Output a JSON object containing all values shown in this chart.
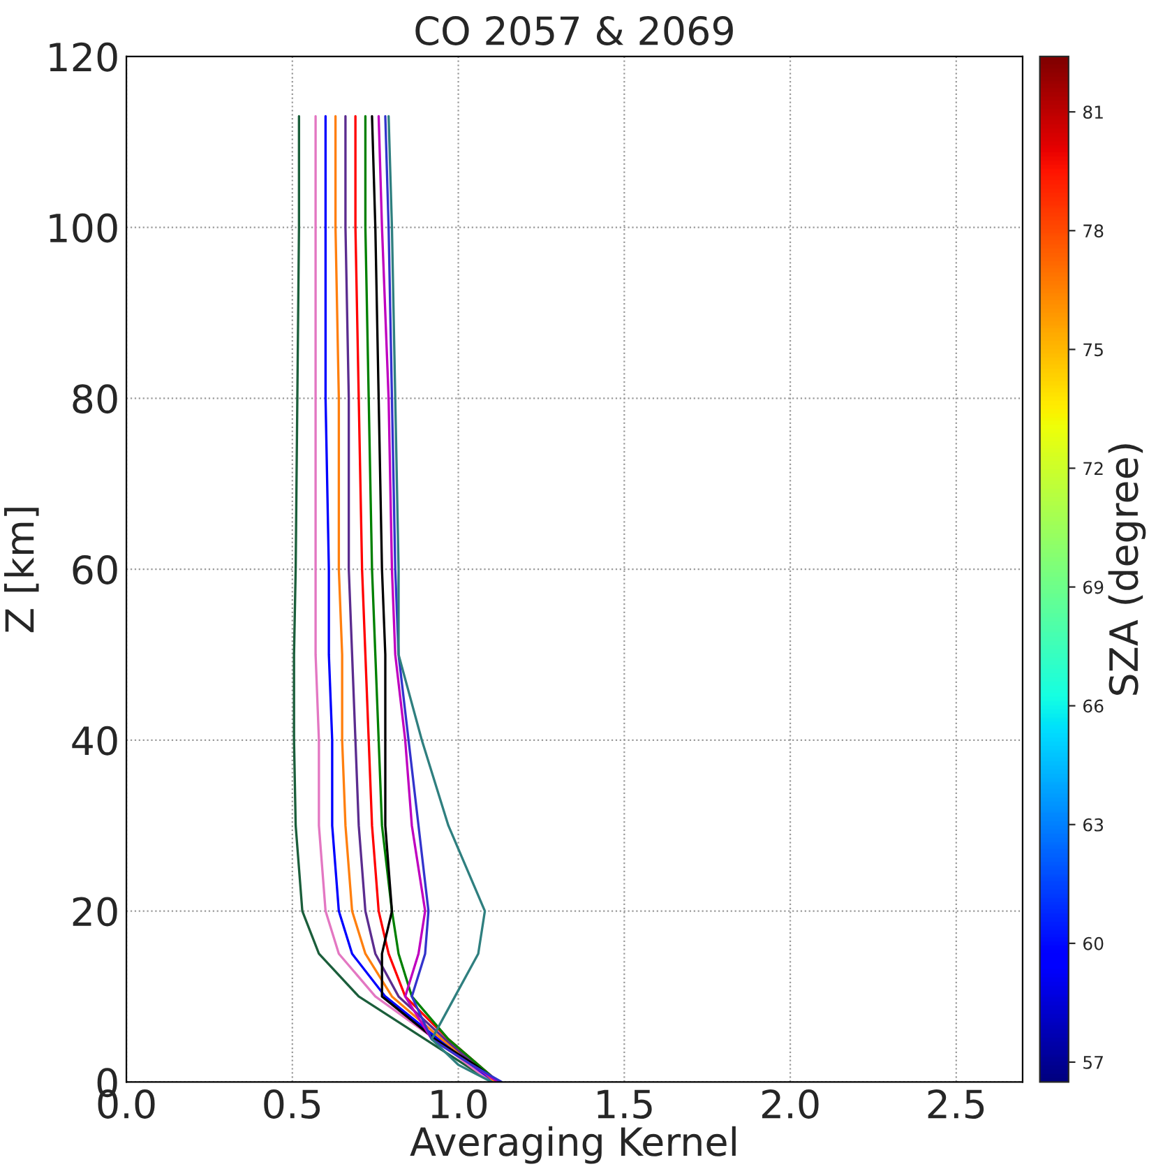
{
  "chart_data": {
    "type": "line",
    "title": "CO 2057 & 2069",
    "xlabel": "Averaging Kernel",
    "ylabel": "Z [km]",
    "clabel": "SZA (degree)",
    "xlim": [
      0,
      2.7
    ],
    "xticks": [
      {
        "value": 0,
        "label": "0.0"
      },
      0.5,
      {
        "value": 1,
        "label": "1.0"
      },
      1.5,
      {
        "value": 2,
        "label": "2.0"
      },
      2.5
    ],
    "ylim": [
      0,
      120
    ],
    "yticks": [
      0,
      20,
      40,
      60,
      80,
      100,
      120
    ],
    "clim": [
      56.5,
      82.4
    ],
    "cticks": [
      57,
      60,
      63,
      66,
      69,
      72,
      75,
      78,
      81
    ],
    "grid": true,
    "marker": "none",
    "series": [
      {
        "color": "#1b5e3b",
        "x": [
          0.52,
          0.52,
          0.515,
          0.51,
          0.505,
          0.505,
          0.51,
          0.53,
          0.58,
          0.7,
          0.9,
          1.02,
          1.1
        ],
        "values": [
          113,
          100,
          80,
          60,
          50,
          40,
          30,
          20,
          15,
          10,
          5,
          2,
          0
        ]
      },
      {
        "color": "#e377c2",
        "x": [
          0.57,
          0.57,
          0.57,
          0.57,
          0.57,
          0.58,
          0.58,
          0.6,
          0.64,
          0.75,
          0.93,
          1.03,
          1.1
        ],
        "values": [
          113,
          100,
          80,
          60,
          50,
          40,
          30,
          20,
          15,
          10,
          5,
          2,
          0
        ]
      },
      {
        "color": "#0000ff",
        "x": [
          0.6,
          0.6,
          0.6,
          0.61,
          0.61,
          0.62,
          0.62,
          0.64,
          0.68,
          0.78,
          0.94,
          1.04,
          1.11
        ],
        "values": [
          113,
          100,
          80,
          60,
          50,
          40,
          30,
          20,
          15,
          10,
          5,
          2,
          0
        ]
      },
      {
        "color": "#ff7f0e",
        "x": [
          0.63,
          0.63,
          0.64,
          0.64,
          0.65,
          0.65,
          0.66,
          0.68,
          0.72,
          0.8,
          0.95,
          1.05,
          1.11
        ],
        "values": [
          113,
          100,
          80,
          60,
          50,
          40,
          30,
          20,
          15,
          10,
          5,
          2,
          0
        ]
      },
      {
        "color": "#5b2c8f",
        "x": [
          0.66,
          0.66,
          0.67,
          0.67,
          0.68,
          0.69,
          0.7,
          0.72,
          0.75,
          0.82,
          0.96,
          1.05,
          1.12
        ],
        "values": [
          113,
          100,
          80,
          60,
          50,
          40,
          30,
          20,
          15,
          10,
          5,
          2,
          0
        ]
      },
      {
        "color": "#ff0000",
        "x": [
          0.69,
          0.69,
          0.7,
          0.71,
          0.72,
          0.73,
          0.74,
          0.76,
          0.79,
          0.84,
          0.97,
          1.06,
          1.12
        ],
        "values": [
          113,
          100,
          80,
          60,
          50,
          40,
          30,
          20,
          15,
          10,
          5,
          2,
          0
        ]
      },
      {
        "color": "#008000",
        "x": [
          0.72,
          0.72,
          0.73,
          0.74,
          0.75,
          0.76,
          0.77,
          0.8,
          0.82,
          0.86,
          0.97,
          1.06,
          1.12
        ],
        "values": [
          113,
          100,
          80,
          60,
          50,
          40,
          30,
          20,
          15,
          10,
          5,
          2,
          0
        ]
      },
      {
        "color": "#000000",
        "x": [
          0.74,
          0.75,
          0.76,
          0.77,
          0.78,
          0.78,
          0.78,
          0.8,
          0.77,
          0.77,
          0.93,
          1.05,
          1.12
        ],
        "values": [
          113,
          100,
          80,
          60,
          50,
          40,
          30,
          20,
          15,
          10,
          5,
          2,
          0
        ]
      },
      {
        "color": "#bf00bf",
        "x": [
          0.76,
          0.77,
          0.79,
          0.8,
          0.81,
          0.84,
          0.86,
          0.9,
          0.88,
          0.84,
          0.92,
          1.04,
          1.12
        ],
        "values": [
          113,
          100,
          80,
          60,
          50,
          40,
          30,
          20,
          15,
          10,
          5,
          2,
          0
        ]
      },
      {
        "color": "#3333cc",
        "x": [
          0.78,
          0.79,
          0.8,
          0.81,
          0.82,
          0.85,
          0.88,
          0.91,
          0.9,
          0.86,
          0.92,
          1.04,
          1.13
        ],
        "values": [
          113,
          100,
          80,
          60,
          50,
          40,
          30,
          20,
          15,
          10,
          5,
          2,
          0
        ]
      },
      {
        "color": "#2f7f7f",
        "x": [
          0.79,
          0.8,
          0.81,
          0.82,
          0.82,
          0.89,
          0.97,
          1.08,
          1.06,
          0.99,
          0.92,
          1.0,
          1.1
        ],
        "values": [
          113,
          100,
          80,
          60,
          50,
          40,
          30,
          20,
          15,
          10,
          5,
          2,
          0
        ]
      }
    ]
  }
}
